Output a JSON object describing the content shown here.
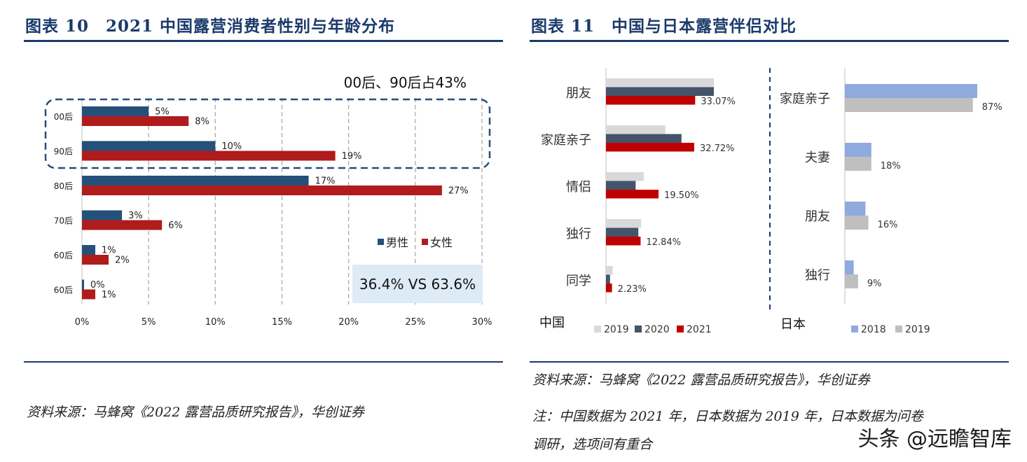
{
  "left_panel": {
    "title": "图表 10　2021 中国露营消费者性别与年龄分布",
    "source": "资料来源：马蜂窝《2022 露营品质研究报告》，华创证券"
  },
  "right_panel": {
    "title": "图表 11　中国与日本露营伴侣对比",
    "source": "资料来源：马蜂窝《2022 露营品质研究报告》，华创证券",
    "note_line1": "注：中国数据为 2021 年，日本数据为 2019 年，日本数据为问卷",
    "note_line2": "调研，选项间有重合"
  },
  "watermark": "头条 @远瞻智库",
  "colors": {
    "navy": "#1b3a6b",
    "male": "#24507a",
    "female": "#b01c1c",
    "c2019": "#d9d9d9",
    "c2020": "#44546a",
    "c2021": "#c00000",
    "j2018": "#8faadc",
    "j2019": "#bfbfbf"
  },
  "chart_data": [
    {
      "type": "bar",
      "orientation": "horizontal",
      "title": "2021 中国露营消费者性别与年龄分布",
      "categories": [
        "00后",
        "90后",
        "80后",
        "70后",
        "60后",
        "60后"
      ],
      "series": [
        {
          "name": "男性",
          "values": [
            5,
            10,
            17,
            3,
            1,
            0
          ],
          "labels": [
            "5%",
            "10%",
            "17%",
            "3%",
            "1%",
            "0%"
          ]
        },
        {
          "name": "女性",
          "values": [
            8,
            19,
            27,
            6,
            2,
            1
          ],
          "labels": [
            "8%",
            "19%",
            "27%",
            "6%",
            "2%",
            "1%"
          ]
        }
      ],
      "xlim": [
        0,
        30
      ],
      "xticks": [
        "0%",
        "5%",
        "10%",
        "15%",
        "20%",
        "25%",
        "30%"
      ],
      "annotation_top": "00后、90后占43%",
      "annotation_box": "36.4% VS 63.6%",
      "legend": [
        "男性",
        "女性"
      ]
    },
    {
      "type": "bar",
      "orientation": "horizontal",
      "title": "中国",
      "categories": [
        "朋友",
        "家庭亲子",
        "情侣",
        "独行",
        "同学"
      ],
      "series": [
        {
          "name": "2019",
          "values": [
            40,
            22,
            14,
            13,
            2.5
          ]
        },
        {
          "name": "2020",
          "values": [
            40,
            28,
            11,
            12,
            1.5
          ]
        },
        {
          "name": "2021",
          "values": [
            33.07,
            32.72,
            19.5,
            12.84,
            2.23
          ],
          "labels": [
            "33.07%",
            "32.72%",
            "19.50%",
            "12.84%",
            "2.23%"
          ]
        }
      ],
      "legend": [
        "2019",
        "2020",
        "2021"
      ]
    },
    {
      "type": "bar",
      "orientation": "horizontal",
      "title": "日本",
      "categories": [
        "家庭亲子",
        "夫妻",
        "朋友",
        "独行"
      ],
      "series": [
        {
          "name": "2018",
          "values": [
            90,
            18,
            14,
            6
          ]
        },
        {
          "name": "2019",
          "values": [
            87,
            18,
            16,
            9
          ],
          "labels": [
            "87%",
            "18%",
            "16%",
            "9%"
          ]
        }
      ],
      "legend": [
        "2018",
        "2019"
      ]
    }
  ]
}
